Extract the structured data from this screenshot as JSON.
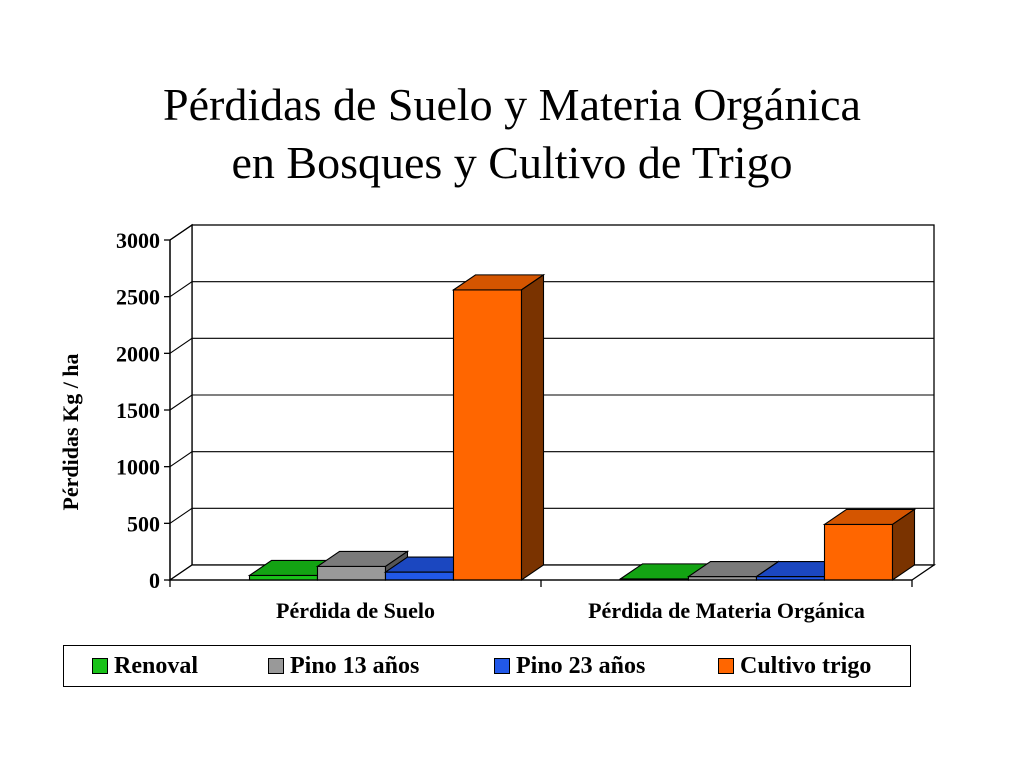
{
  "chart_data": {
    "type": "bar",
    "style": "3d-clustered-column",
    "title_lines": [
      "Pérdidas de Suelo y Materia Orgánica",
      "en Bosques y Cultivo de Trigo"
    ],
    "ylabel": "Pérdidas Kg / ha",
    "xlabel": "",
    "ylim": [
      0,
      3000
    ],
    "yticks": [
      0,
      500,
      1000,
      1500,
      2000,
      2500,
      3000
    ],
    "grid": true,
    "legend_position": "bottom",
    "categories": [
      "Pérdida de Suelo",
      "Pérdida de Materia Orgánica"
    ],
    "series": [
      {
        "name": "Renoval",
        "values": [
          40,
          10
        ],
        "color": "#19C219",
        "side_color": "#0E7D0E",
        "top_color": "#13A313"
      },
      {
        "name": "Pino 13 años",
        "values": [
          120,
          30
        ],
        "color": "#999999",
        "side_color": "#555555",
        "top_color": "#7A7A7A"
      },
      {
        "name": "Pino 23 años",
        "values": [
          70,
          30
        ],
        "color": "#2158E8",
        "side_color": "#0F2F8F",
        "top_color": "#1B47C0"
      },
      {
        "name": "Cultivo trigo",
        "values": [
          2560,
          490
        ],
        "color": "#FF6600",
        "side_color": "#7A3300",
        "top_color": "#D45500"
      }
    ]
  }
}
